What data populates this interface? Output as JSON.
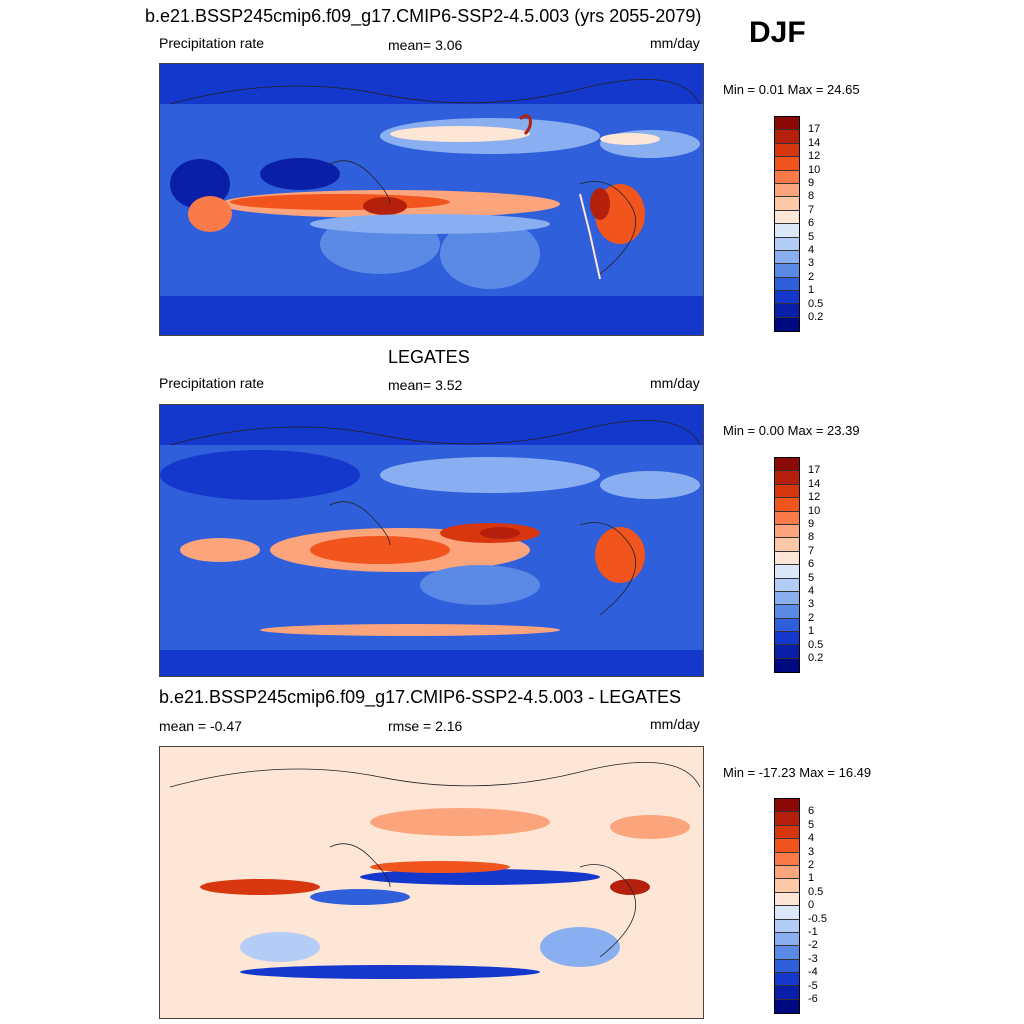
{
  "season": "DJF",
  "panels": [
    {
      "title": "b.e21.BSSP245cmip6.f09_g17.CMIP6-SSP2-4.5.003 (yrs 2055-2079)",
      "left_label": "Precipitation rate",
      "center_label": "mean=   3.06",
      "units": "mm/day",
      "minmax": "Min =   0.01 Max =  24.65",
      "colorbar_labels": [
        "17",
        "14",
        "12",
        "10",
        "9",
        "8",
        "7",
        "6",
        "5",
        "4",
        "3",
        "2",
        "1",
        "0.5",
        "0.2"
      ],
      "colors": [
        "#8b0a05",
        "#b5200d",
        "#d8360f",
        "#f2541d",
        "#fb7a4a",
        "#fca47c",
        "#fdc8a7",
        "#fde6d5",
        "#dbe8fa",
        "#b4cdf6",
        "#8aaff0",
        "#5b8ae6",
        "#2f5fdb",
        "#1437cc",
        "#0a1fa8",
        "#000a80"
      ]
    },
    {
      "title": "LEGATES",
      "left_label": "Precipitation rate",
      "center_label": "mean=   3.52",
      "units": "mm/day",
      "minmax": "Min =   0.00 Max =  23.39",
      "colorbar_labels": [
        "17",
        "14",
        "12",
        "10",
        "9",
        "8",
        "7",
        "6",
        "5",
        "4",
        "3",
        "2",
        "1",
        "0.5",
        "0.2"
      ],
      "colors": [
        "#8b0a05",
        "#b5200d",
        "#d8360f",
        "#f2541d",
        "#fb7a4a",
        "#fca47c",
        "#fdc8a7",
        "#fde6d5",
        "#dbe8fa",
        "#b4cdf6",
        "#8aaff0",
        "#5b8ae6",
        "#2f5fdb",
        "#1437cc",
        "#0a1fa8",
        "#000a80"
      ]
    },
    {
      "title": "b.e21.BSSP245cmip6.f09_g17.CMIP6-SSP2-4.5.003 - LEGATES",
      "left_label": "mean =  -0.47",
      "center_label": "rmse =   2.16",
      "units": "mm/day",
      "minmax": "Min = -17.23 Max =  16.49",
      "colorbar_labels": [
        "6",
        "5",
        "4",
        "3",
        "2",
        "1",
        "0.5",
        "0",
        "-0.5",
        "-1",
        "-2",
        "-3",
        "-4",
        "-5",
        "-6"
      ],
      "colors": [
        "#8b0a05",
        "#b5200d",
        "#d8360f",
        "#f2541d",
        "#fb7a4a",
        "#fca47c",
        "#fdc8a7",
        "#fde6d5",
        "#dbe8fa",
        "#b4cdf6",
        "#8aaff0",
        "#5b8ae6",
        "#2f5fdb",
        "#1437cc",
        "#0a1fa8",
        "#000a80"
      ]
    }
  ]
}
